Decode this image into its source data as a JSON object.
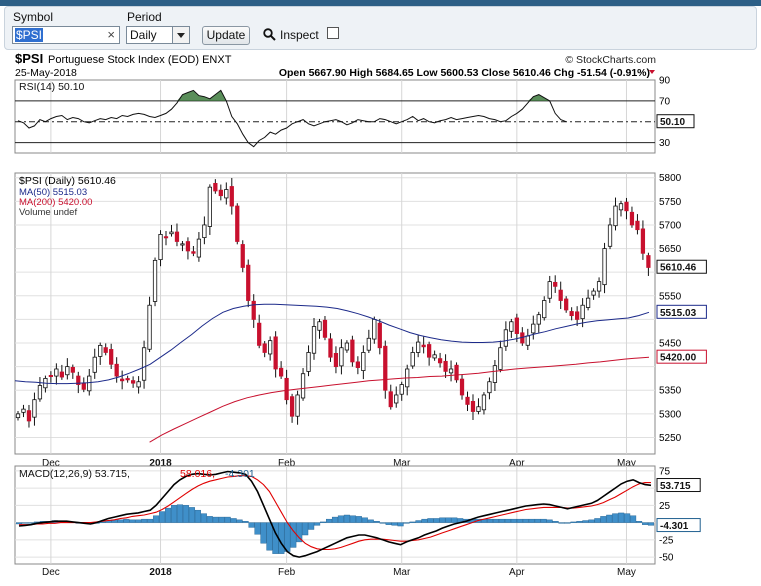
{
  "form": {
    "symbol_label": "Symbol",
    "symbol_value": "$PSI",
    "clear_glyph": "×",
    "period_label": "Period",
    "period_value": "Daily",
    "update_label": "Update",
    "inspect_label": "Inspect",
    "inspect_checked": false,
    "search_icon": "search-icon"
  },
  "header": {
    "title_symbol": "$PSI",
    "title_rest": "Portuguese Stock Index (EOD) ENXT",
    "copyright": "© StockCharts.com",
    "date": "25-May-2018",
    "ohlc_line": "Open 5667.90  High 5684.65  Low 5600.53  Close 5610.46  Chg -51.54 (-0.91%)"
  },
  "colors": {
    "up": "#ffffff",
    "down": "#c8102e",
    "ma50": "#1c2a8a",
    "ma200": "#c8102e",
    "rsi_fill": "#3d7a3d",
    "macd_hist": "#3f8fc9",
    "macd_line": "#000000",
    "signal_line": "#e00000"
  },
  "chart_data": [
    {
      "type": "line",
      "panel": "RSI",
      "title": "RSI(14) 50.10",
      "last_value": "50.10",
      "ylim": [
        20,
        90
      ],
      "yticks": [
        90,
        70,
        50,
        30
      ],
      "reference_lines": [
        70,
        50,
        30
      ],
      "values": [
        51,
        49,
        44,
        46,
        52,
        50,
        53,
        55,
        56,
        52,
        54,
        53,
        50,
        49,
        51,
        53,
        52,
        54,
        53,
        56,
        55,
        57,
        58,
        57,
        55,
        54,
        56,
        58,
        62,
        68,
        76,
        78,
        80,
        75,
        74,
        72,
        76,
        80,
        70,
        55,
        48,
        38,
        30,
        26,
        32,
        35,
        40,
        38,
        42,
        44,
        48,
        50,
        52,
        48,
        46,
        48,
        50,
        51,
        52,
        50,
        47,
        49,
        52,
        51,
        50,
        50,
        53,
        52,
        50,
        48,
        50,
        52,
        55,
        51,
        53,
        50,
        49,
        51,
        52,
        54,
        52,
        53,
        54,
        55,
        56,
        55,
        53,
        52,
        50,
        51,
        55,
        58,
        62,
        68,
        74,
        76,
        73,
        70,
        58,
        52,
        50
      ]
    },
    {
      "type": "candlestick",
      "panel": "Price",
      "title": "$PSI (Daily) 5610.46",
      "legend": [
        "MA(50) 5515.03",
        "MA(200) 5420.00",
        "Volume undef"
      ],
      "last_close": "5610.46",
      "ma50_last": "5515.03",
      "ma200_last": "5420.00",
      "ylim": [
        5215,
        5810
      ],
      "yticks": [
        5800,
        5750,
        5700,
        5650,
        5600,
        5550,
        5500,
        5450,
        5400,
        5350,
        5300,
        5250
      ],
      "xticks": [
        "Dec",
        "2018",
        "Feb",
        "Mar",
        "Apr",
        "May"
      ],
      "xtick_index": [
        6,
        26,
        49,
        70,
        91,
        111
      ],
      "closes": [
        5300,
        5310,
        5285,
        5330,
        5360,
        5375,
        5380,
        5395,
        5378,
        5400,
        5388,
        5362,
        5352,
        5380,
        5420,
        5445,
        5430,
        5405,
        5380,
        5370,
        5372,
        5365,
        5368,
        5440,
        5530,
        5625,
        5680,
        5675,
        5685,
        5665,
        5660,
        5645,
        5640,
        5670,
        5700,
        5780,
        5772,
        5762,
        5775,
        5740,
        5665,
        5610,
        5540,
        5500,
        5445,
        5430,
        5455,
        5395,
        5380,
        5330,
        5295,
        5340,
        5385,
        5430,
        5485,
        5495,
        5462,
        5420,
        5400,
        5440,
        5450,
        5410,
        5398,
        5430,
        5460,
        5500,
        5440,
        5350,
        5315,
        5340,
        5362,
        5395,
        5430,
        5452,
        5442,
        5420,
        5425,
        5408,
        5390,
        5395,
        5372,
        5340,
        5320,
        5305,
        5315,
        5340,
        5368,
        5402,
        5440,
        5478,
        5495,
        5470,
        5450,
        5465,
        5490,
        5510,
        5540,
        5580,
        5570,
        5540,
        5520,
        5508,
        5500,
        5530,
        5545,
        5560,
        5580,
        5650,
        5700,
        5740,
        5745,
        5730,
        5700,
        5690,
        5640,
        5610
      ],
      "ma50": [
        5370,
        5368,
        5367,
        5365,
        5364,
        5364,
        5365,
        5366,
        5368,
        5372,
        5378,
        5386,
        5395,
        5405,
        5420,
        5435,
        5452,
        5468,
        5486,
        5502,
        5515,
        5523,
        5528,
        5531,
        5532,
        5532,
        5531,
        5530,
        5529,
        5528,
        5526,
        5523,
        5518,
        5512,
        5505,
        5497,
        5488,
        5480,
        5472,
        5466,
        5461,
        5457,
        5454,
        5452,
        5451,
        5451,
        5452,
        5454,
        5458,
        5463,
        5469,
        5474,
        5480,
        5485,
        5490,
        5494,
        5497,
        5499,
        5501,
        5503,
        5508,
        5515
      ],
      "ma50_start_index": 0,
      "ma200": [
        5240,
        5255,
        5268,
        5280,
        5292,
        5304,
        5316,
        5326,
        5334,
        5340,
        5345,
        5349,
        5352,
        5355,
        5358,
        5361,
        5364,
        5367,
        5370,
        5372,
        5374,
        5376,
        5377,
        5379,
        5380,
        5382,
        5384,
        5386,
        5389,
        5392,
        5395,
        5397,
        5399,
        5401,
        5403,
        5405,
        5408,
        5410,
        5413,
        5416,
        5418,
        5420
      ],
      "ma200_start_index": 24
    },
    {
      "type": "line",
      "panel": "MACD",
      "title": "MACD(12,26,9) 53.715, 58.016, -4.301",
      "macd_label": "MACD(12,26,9) 53.715,",
      "signal_label": "58.016,",
      "hist_label": "-4.301",
      "macd_last": "53.715",
      "hist_last": "-4.301",
      "ylim": [
        -60,
        82
      ],
      "yticks": [
        75,
        50,
        25,
        0,
        -25,
        -50
      ],
      "macd": [
        -5,
        -4,
        -3,
        -1,
        0,
        1,
        2,
        2,
        2,
        1,
        0,
        -1,
        -2,
        0,
        3,
        6,
        8,
        10,
        12,
        13,
        14,
        16,
        18,
        25,
        35,
        45,
        55,
        62,
        67,
        70,
        71,
        70,
        69,
        70,
        72,
        74,
        73,
        72,
        70,
        60,
        45,
        25,
        5,
        -15,
        -30,
        -42,
        -48,
        -50,
        -48,
        -45,
        -42,
        -38,
        -34,
        -30,
        -26,
        -22,
        -20,
        -18,
        -18,
        -20,
        -22,
        -25,
        -28,
        -30,
        -32,
        -28,
        -25,
        -22,
        -18,
        -15,
        -12,
        -8,
        -5,
        -2,
        0,
        2,
        5,
        8,
        10,
        12,
        14,
        16,
        18,
        20,
        22,
        24,
        25,
        26,
        27,
        26,
        24,
        22,
        20,
        22,
        24,
        26,
        28,
        32,
        38,
        44,
        50,
        56,
        60,
        62,
        58,
        55,
        54
      ],
      "signal": [
        -3,
        -3,
        -3,
        -2,
        -2,
        -1,
        -1,
        0,
        0,
        0,
        0,
        0,
        0,
        1,
        2,
        3,
        4,
        6,
        7,
        9,
        10,
        11,
        13,
        15,
        19,
        24,
        30,
        36,
        42,
        48,
        53,
        57,
        60,
        62,
        64,
        66,
        67,
        68,
        68,
        67,
        62,
        55,
        45,
        30,
        15,
        0,
        -12,
        -22,
        -30,
        -35,
        -38,
        -39,
        -39,
        -38,
        -36,
        -33,
        -30,
        -27,
        -25,
        -24,
        -24,
        -24,
        -25,
        -26,
        -27,
        -27,
        -26,
        -25,
        -23,
        -21,
        -18,
        -15,
        -12,
        -9,
        -6,
        -3,
        0,
        3,
        5,
        7,
        9,
        11,
        13,
        15,
        17,
        19,
        20,
        21,
        22,
        22,
        22,
        22,
        21,
        21,
        22,
        23,
        24,
        26,
        29,
        33,
        37,
        42,
        47,
        52,
        56,
        58,
        58
      ]
    }
  ]
}
